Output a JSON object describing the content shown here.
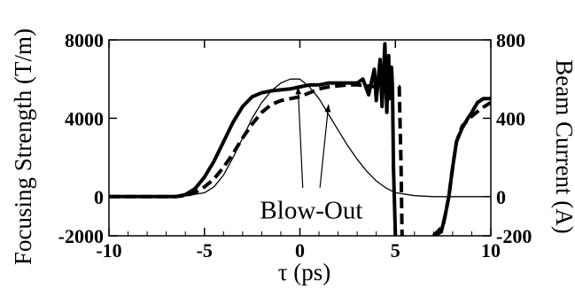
{
  "chart_data": {
    "type": "line",
    "title": "",
    "xlabel": "τ (ps)",
    "ylabel_left": "Focusing Strength (T/m)",
    "ylabel_right": "Beam Current (A)",
    "xlim": [
      -10,
      10
    ],
    "ylim_left": [
      -2000,
      8000
    ],
    "ylim_right": [
      -200,
      800
    ],
    "x_ticks": [
      -10,
      -5,
      0,
      5,
      10
    ],
    "x_tick_labels": [
      "-10",
      "-5",
      "0",
      "5",
      "10"
    ],
    "y_left_ticks": [
      -2000,
      0,
      4000,
      8000
    ],
    "y_left_tick_labels": [
      "-2000",
      "0",
      "4000",
      "8000"
    ],
    "y_right_ticks": [
      -200,
      0,
      400,
      800
    ],
    "y_right_tick_labels": [
      "-200",
      "0",
      "400",
      "800"
    ],
    "grid": false,
    "legend": "none",
    "annotations": [
      {
        "text": "Blow-Out",
        "arrow_targets": [
          [
            -0.1,
            5600
          ],
          [
            1.5,
            4700
          ]
        ]
      }
    ],
    "series": [
      {
        "style": "thin-solid",
        "axis": "right",
        "x": [
          -10,
          -7,
          -6,
          -5,
          -4.5,
          -4,
          -3.5,
          -3,
          -2.5,
          -2,
          -1.5,
          -1,
          -0.5,
          0,
          0.5,
          1,
          1.5,
          2,
          2.5,
          3,
          3.5,
          4,
          4.5,
          5,
          6,
          7,
          8,
          10
        ],
        "y": [
          0,
          0,
          3,
          20,
          50,
          110,
          200,
          300,
          400,
          480,
          540,
          580,
          600,
          600,
          560,
          500,
          420,
          340,
          260,
          190,
          130,
          80,
          45,
          20,
          5,
          0,
          0,
          0
        ]
      },
      {
        "style": "thick-solid",
        "axis": "left",
        "x": [
          -10,
          -6.5,
          -6,
          -5.5,
          -5,
          -4.5,
          -4,
          -3.5,
          -3,
          -2.5,
          -2,
          -1.5,
          -1,
          -0.5,
          0,
          0.5,
          1,
          1.5,
          2,
          2.5,
          3,
          3.5,
          4,
          4.5,
          4.85,
          4.9,
          5.0
        ],
        "y": [
          0,
          0,
          100,
          400,
          1000,
          1800,
          2800,
          3800,
          4600,
          5100,
          5300,
          5400,
          5450,
          5500,
          5600,
          5700,
          5700,
          5800,
          5800,
          5800,
          5800,
          5700,
          6200,
          6700,
          5800,
          1500,
          -2000
        ],
        "noisy_tail": {
          "x": [
            3.3,
            3.6,
            3.9,
            4.0,
            4.2,
            4.3,
            4.45,
            4.55,
            4.65,
            4.7,
            4.8,
            4.85
          ],
          "y": [
            6000,
            5200,
            6500,
            4900,
            7000,
            4600,
            7800,
            4300,
            7200,
            5000,
            6600,
            5600
          ]
        },
        "recovery": {
          "x": [
            7.0,
            7.4,
            7.6,
            7.8,
            8.0,
            8.2,
            8.5,
            8.8,
            9.0,
            9.3,
            9.6,
            10.0
          ],
          "y": [
            -2000,
            -1800,
            -1000,
            0,
            1500,
            2800,
            3500,
            4000,
            4300,
            4800,
            5000,
            5000
          ]
        }
      },
      {
        "style": "thick-dashed",
        "axis": "left",
        "x": [
          -10,
          -6.5,
          -6,
          -5.5,
          -5,
          -4.5,
          -4,
          -3.5,
          -3,
          -2.5,
          -2,
          -1.5,
          -1,
          -0.5,
          0,
          0.5,
          1,
          1.5,
          2,
          2.5,
          3,
          3.5,
          4,
          4.5,
          4.9,
          5.2,
          5.3,
          5.35
        ],
        "y": [
          0,
          0,
          50,
          200,
          500,
          900,
          1500,
          2200,
          3000,
          3700,
          4300,
          4700,
          4900,
          5000,
          5100,
          5300,
          5500,
          5600,
          5650,
          5700,
          5700,
          5650,
          5600,
          5650,
          5700,
          5600,
          1500,
          -2000
        ],
        "recovery": {
          "x": [
            7.0,
            7.5,
            7.8,
            8.0,
            8.2,
            8.5,
            9.0,
            9.5,
            10.0
          ],
          "y": [
            -2000,
            -1500,
            0,
            1500,
            2800,
            3600,
            4100,
            4500,
            4800
          ]
        }
      }
    ]
  }
}
